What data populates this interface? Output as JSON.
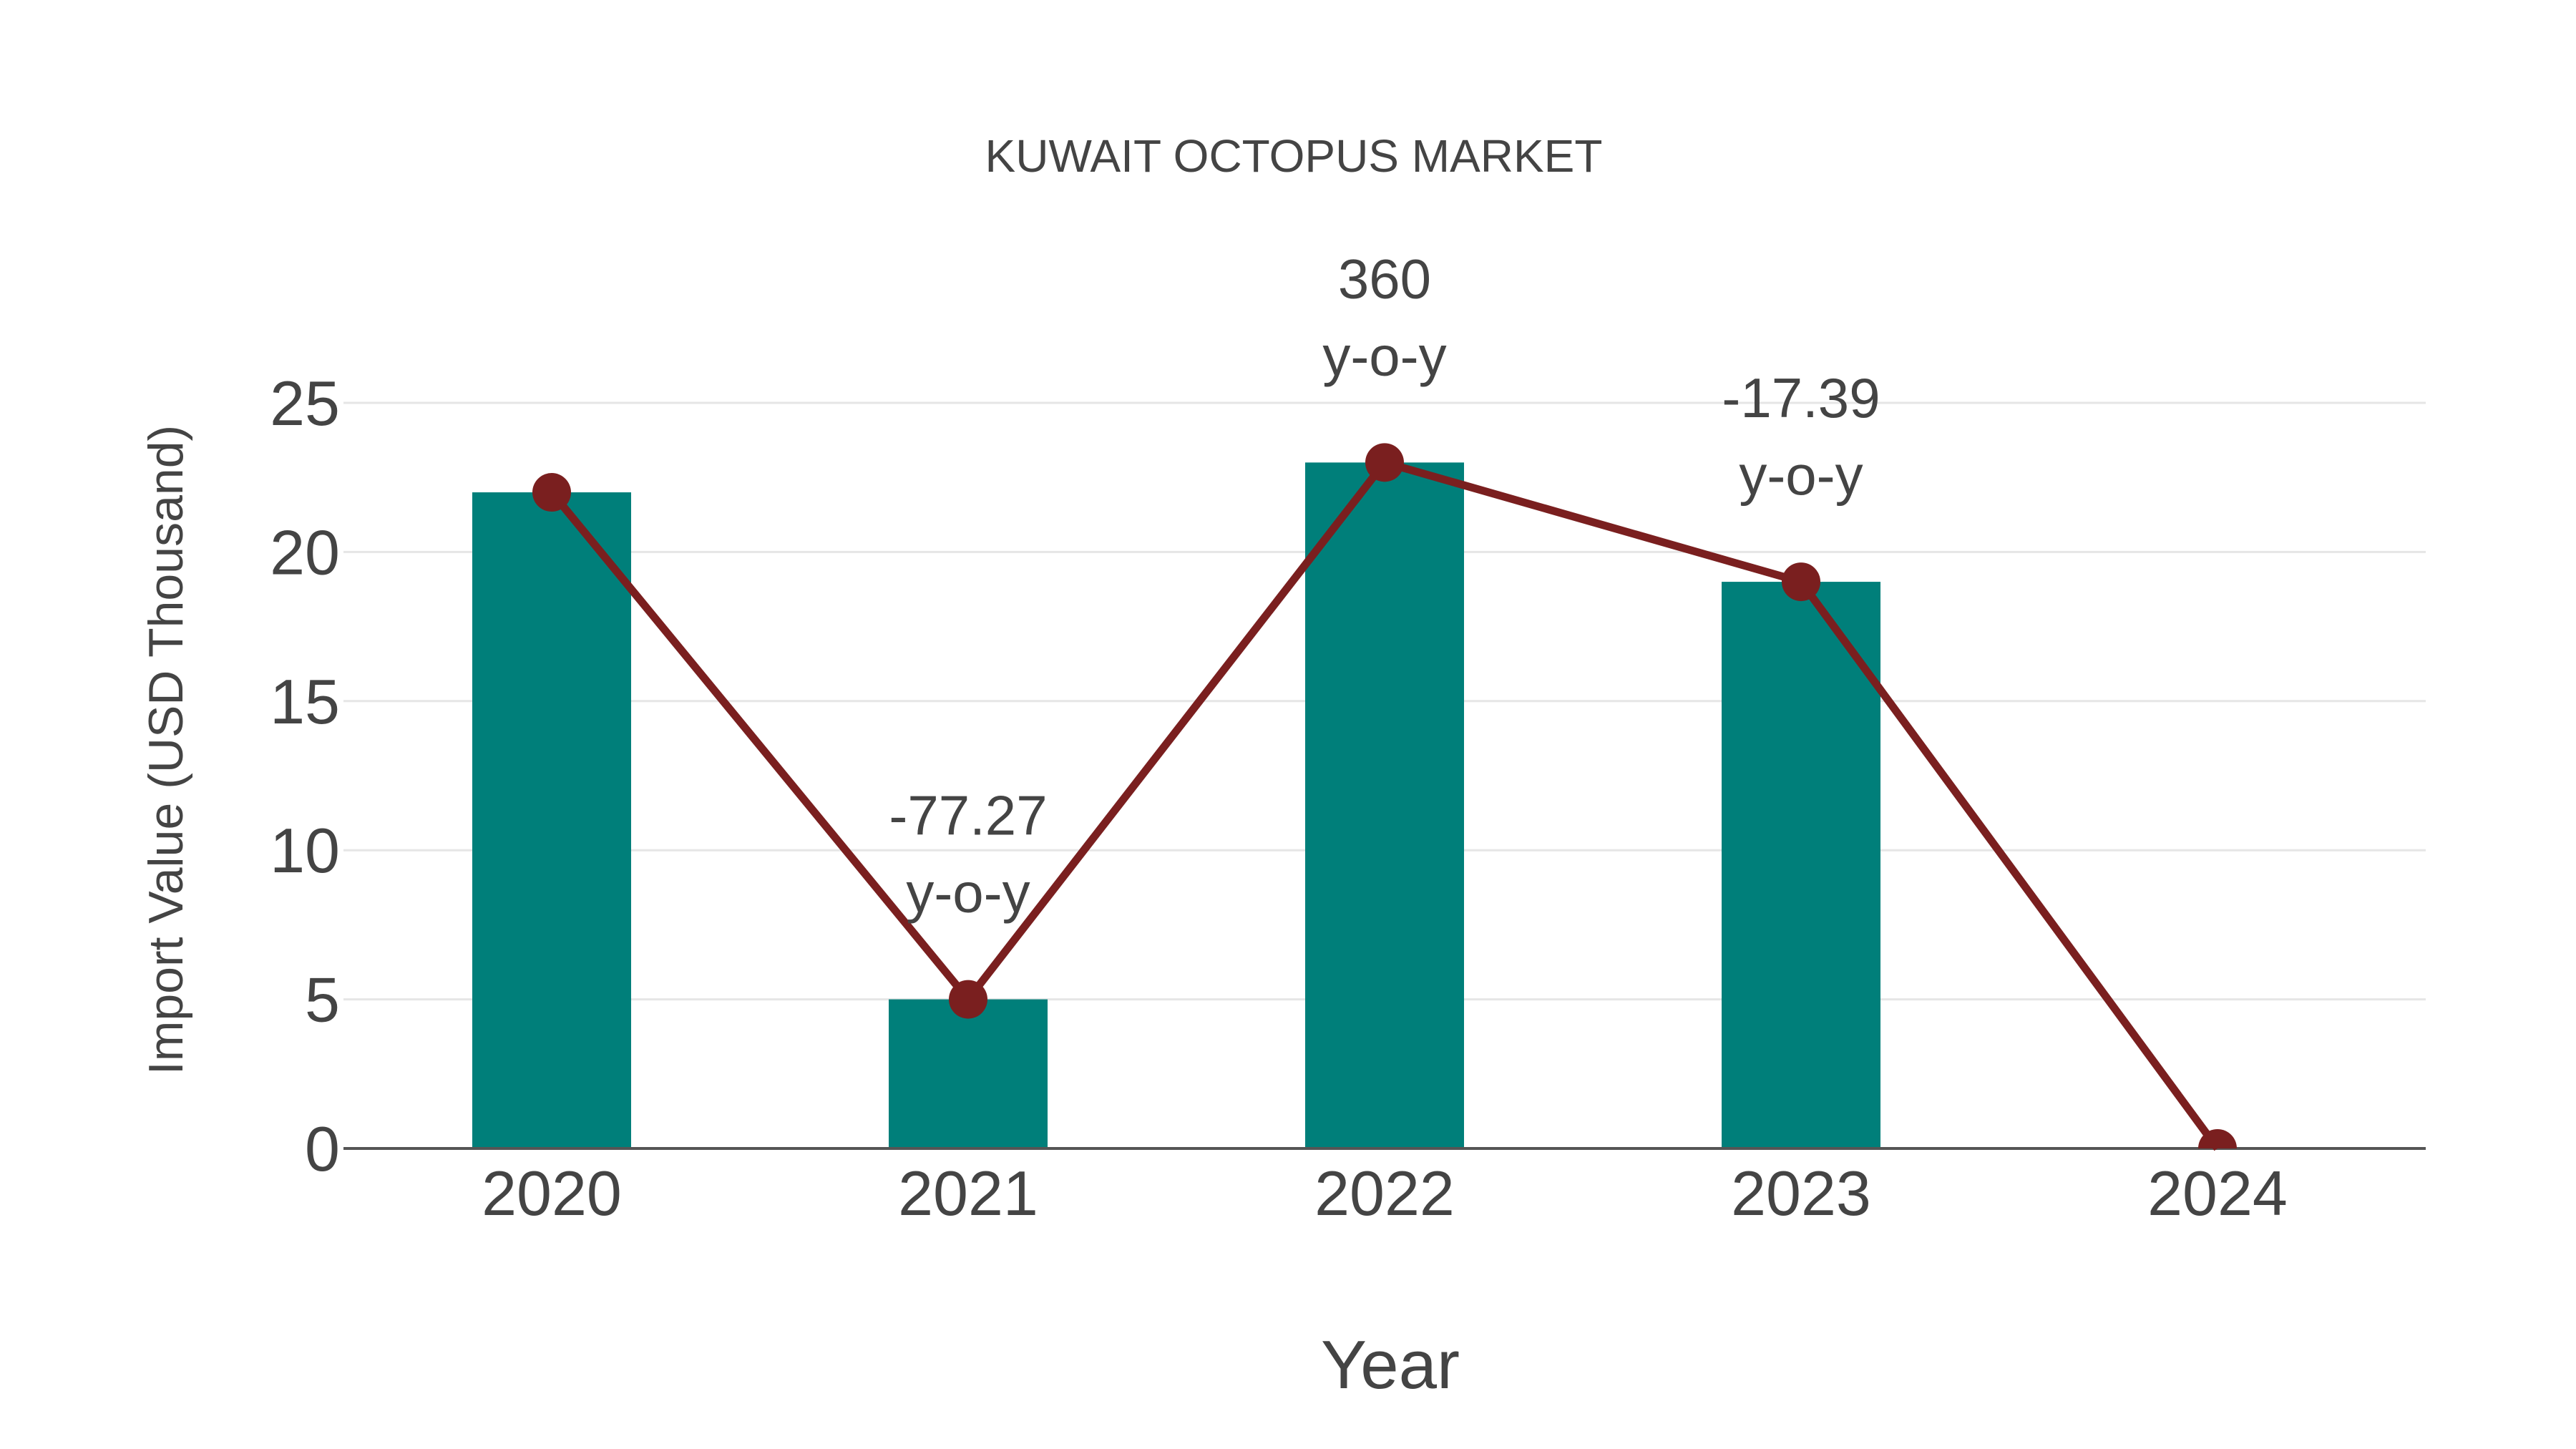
{
  "title": "KUWAIT OCTOPUS MARKET",
  "colors": {
    "bar": "#007f7a",
    "line": "#7a1f1f",
    "marker": "#7a1f1f",
    "text": "#444444",
    "grid": "#e6e6e6"
  },
  "chart_data": {
    "type": "bar",
    "title": "KUWAIT OCTOPUS MARKET",
    "xlabel": "Year",
    "ylabel": "Import Value (USD Thousand)",
    "categories": [
      "2020",
      "2021",
      "2022",
      "2023",
      "2024"
    ],
    "series": [
      {
        "name": "Import Value",
        "type": "bar",
        "values": [
          22,
          5,
          23,
          19,
          null
        ]
      },
      {
        "name": "Import Value trend",
        "type": "line",
        "values": [
          22,
          5,
          23,
          19,
          0
        ]
      }
    ],
    "annotations": [
      {
        "category": "2021",
        "value": "-77.27",
        "suffix": "y-o-y"
      },
      {
        "category": "2022",
        "value": "360",
        "suffix": "y-o-y"
      },
      {
        "category": "2023",
        "value": "-17.39",
        "suffix": "y-o-y"
      }
    ],
    "ylim": [
      0,
      25
    ],
    "yticks": [
      0,
      5,
      10,
      15,
      20,
      25
    ],
    "grid": true,
    "legend": "none"
  }
}
